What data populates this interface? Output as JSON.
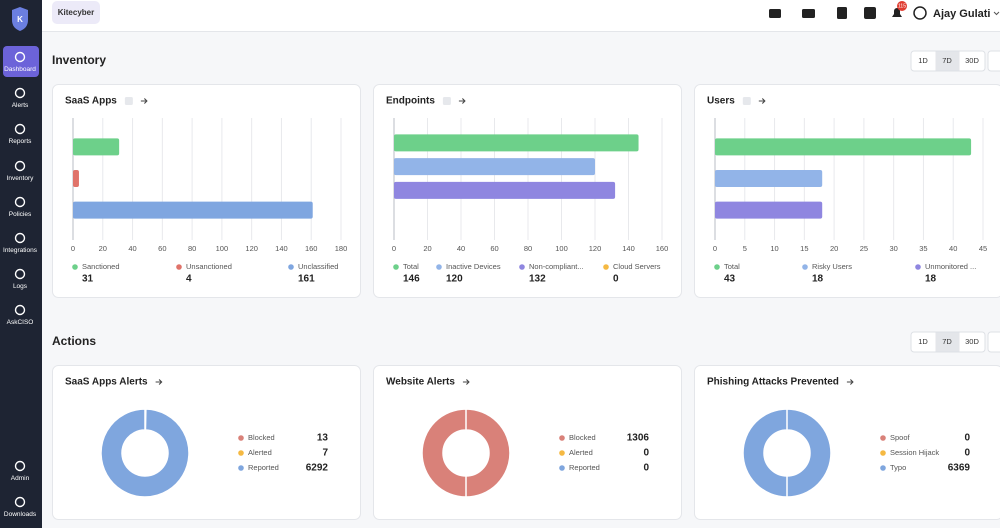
{
  "sidebar": {
    "logo": "K",
    "items": [
      "Dashboard",
      "Alerts",
      "Reports",
      "Inventory",
      "Policies",
      "Integrations",
      "Logs",
      "AskCISO"
    ],
    "bottom_items": [
      "Admin",
      "Downloads"
    ]
  },
  "header": {
    "tenant": "Kitecyber",
    "notification_count": "115",
    "user": "Ajay Gulati"
  },
  "inventory": {
    "title": "Inventory",
    "ranges": [
      "1D",
      "7D",
      "30D"
    ],
    "cards": [
      {
        "title": "SaaS Apps",
        "chart": {
          "type": "bar",
          "categories": [
            "Sanctioned",
            "Unsanctioned",
            "Unclassified"
          ],
          "values": [
            31,
            4,
            161
          ],
          "colors": [
            "#6dd08a",
            "#e0736a",
            "#7fa6e0"
          ],
          "xlim": [
            0,
            180
          ],
          "xticks": [
            0,
            20,
            40,
            60,
            80,
            100,
            120,
            140,
            160,
            180
          ],
          "grid": true
        }
      },
      {
        "title": "Endpoints",
        "chart": {
          "type": "bar",
          "categories": [
            "Total",
            "Inactive Devices",
            "Non-compliant...",
            "Cloud Servers"
          ],
          "values": [
            146,
            120,
            132,
            0
          ],
          "colors": [
            "#6dd08a",
            "#92b4e8",
            "#8f86e0",
            "#f5b942"
          ],
          "xlim": [
            0,
            160
          ],
          "xticks": [
            0,
            20,
            40,
            60,
            80,
            100,
            120,
            140,
            160
          ],
          "grid": true
        }
      },
      {
        "title": "Users",
        "chart": {
          "type": "bar",
          "categories": [
            "Total",
            "Risky Users",
            "Unmonitored ..."
          ],
          "values": [
            43,
            18,
            18
          ],
          "colors": [
            "#6dd08a",
            "#92b4e8",
            "#8f86e0"
          ],
          "xlim": [
            0,
            45
          ],
          "xticks": [
            0,
            5,
            10,
            15,
            20,
            25,
            30,
            35,
            40,
            45
          ],
          "grid": true
        }
      }
    ]
  },
  "actions": {
    "title": "Actions",
    "ranges": [
      "1D",
      "7D",
      "30D"
    ],
    "cards": [
      {
        "title": "SaaS Apps Alerts",
        "chart": {
          "type": "donut",
          "categories": [
            "Blocked",
            "Alerted",
            "Reported"
          ],
          "values": [
            13,
            7,
            6292
          ],
          "colors": [
            "#d98179",
            "#f5b942",
            "#7fa6de"
          ]
        }
      },
      {
        "title": "Website Alerts",
        "chart": {
          "type": "donut",
          "categories": [
            "Blocked",
            "Alerted",
            "Reported"
          ],
          "values": [
            1306,
            0,
            0
          ],
          "colors": [
            "#d98179",
            "#f5b942",
            "#7fa6de"
          ]
        }
      },
      {
        "title": "Phishing Attacks Prevented",
        "chart": {
          "type": "donut",
          "categories": [
            "Spoof",
            "Session Hijack",
            "Typo"
          ],
          "values": [
            0,
            0,
            6369
          ],
          "colors": [
            "#d98179",
            "#f5b942",
            "#7fa6de"
          ]
        }
      }
    ]
  }
}
